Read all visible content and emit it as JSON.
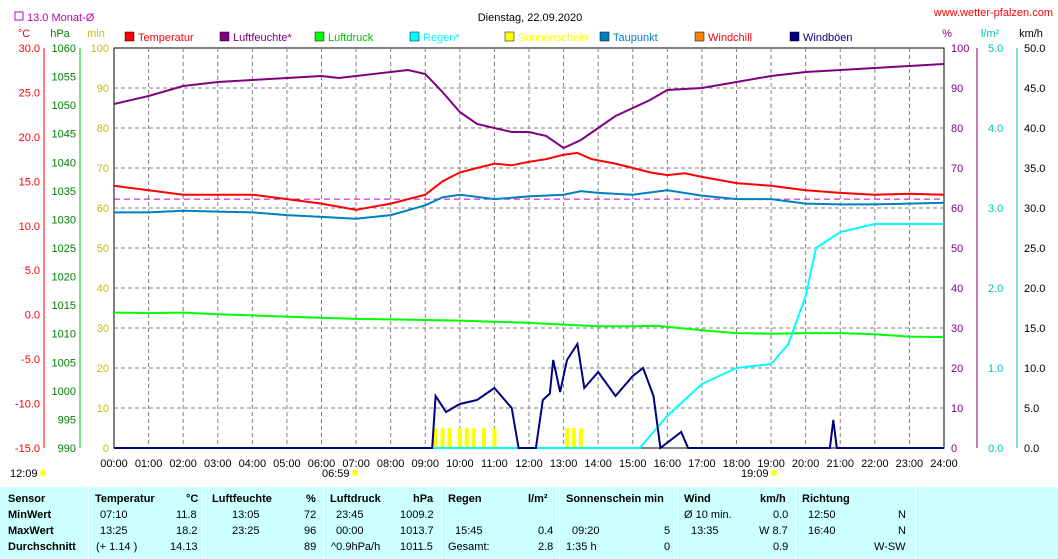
{
  "header": {
    "title": "Dienstag, 22.09.2020",
    "site": "www.wetter-pfalzen.com",
    "month_avg": "13.0 Monat-Ø"
  },
  "colors": {
    "temperatur": "#ff0000",
    "luftfeuchte": "#800080",
    "luftdruck": "#00ff00",
    "regen": "#00ffff",
    "sonnenschein": "#ffff00",
    "taupunkt": "#0080c0",
    "windchill": "#ff8000",
    "windboeen": "#000080",
    "grid": "#808080",
    "table_bg": "#ccffff"
  },
  "axes": {
    "left_units": [
      "°C",
      "hPa",
      "min"
    ],
    "right_units": [
      "%",
      "l/m²",
      "km/h"
    ],
    "temp_ticks": [
      "30.0",
      "25.0",
      "20.0",
      "15.0",
      "10.0",
      "5.0",
      "0.0",
      "-5.0",
      "-10.0",
      "-15.0"
    ],
    "hpa_ticks": [
      "1060",
      "1055",
      "1050",
      "1045",
      "1040",
      "1035",
      "1030",
      "1025",
      "1020",
      "1015",
      "1010",
      "1005",
      "1000",
      "995",
      "990"
    ],
    "min_ticks": [
      "100",
      "90",
      "80",
      "70",
      "60",
      "50",
      "40",
      "30",
      "20",
      "10",
      "0"
    ],
    "pct_ticks": [
      "100",
      "90",
      "80",
      "70",
      "60",
      "50",
      "40",
      "30",
      "20",
      "10",
      "0"
    ],
    "rain_ticks": [
      "5.0",
      "4.0",
      "3.0",
      "2.0",
      "1.0",
      "0.0"
    ],
    "wind_ticks": [
      "50.0",
      "45.0",
      "40.0",
      "35.0",
      "30.0",
      "25.0",
      "20.0",
      "15.0",
      "10.0",
      "5.0",
      "0.0"
    ],
    "hour_labels": [
      "00:00",
      "01:00",
      "02:00",
      "03:00",
      "04:00",
      "05:00",
      "06:00",
      "07:00",
      "08:00",
      "09:00",
      "10:00",
      "11:00",
      "12:00",
      "13:00",
      "14:00",
      "15:00",
      "16:00",
      "17:00",
      "18:00",
      "19:00",
      "20:00",
      "21:00",
      "22:00",
      "23:00",
      "24:00"
    ],
    "markers": {
      "moonrise": "12:09",
      "sunrise": "06:59",
      "sunset": "19:09"
    }
  },
  "legend": [
    "Temperatur",
    "Luftfeuchte*",
    "Luftdruck",
    "Regen*",
    "Sonnenschein",
    "Taupunkt",
    "Windchill",
    "Windböen"
  ],
  "chart_data": {
    "type": "line",
    "title": "Dienstag, 22.09.2020",
    "x_unit": "hour",
    "xlim": [
      0,
      24
    ],
    "series": [
      {
        "name": "Luftfeuchte*",
        "axis": "%",
        "ylim": [
          0,
          100
        ],
        "points": [
          [
            0,
            86
          ],
          [
            1,
            88
          ],
          [
            2,
            90.5
          ],
          [
            3,
            91.5
          ],
          [
            4,
            92
          ],
          [
            5,
            92.5
          ],
          [
            6,
            93
          ],
          [
            6.5,
            92.5
          ],
          [
            7,
            93
          ],
          [
            8,
            94
          ],
          [
            8.5,
            94.5
          ],
          [
            9,
            93.5
          ],
          [
            9.5,
            89
          ],
          [
            10,
            84
          ],
          [
            10.5,
            81
          ],
          [
            11,
            80
          ],
          [
            11.5,
            79
          ],
          [
            12,
            79
          ],
          [
            12.5,
            78
          ],
          [
            13,
            75
          ],
          [
            13.5,
            77
          ],
          [
            14,
            80
          ],
          [
            14.5,
            83
          ],
          [
            15,
            85
          ],
          [
            15.5,
            87
          ],
          [
            16,
            89.5
          ],
          [
            17,
            90
          ],
          [
            18,
            91.5
          ],
          [
            19,
            93
          ],
          [
            20,
            94
          ],
          [
            21,
            94.5
          ],
          [
            22,
            95
          ],
          [
            23,
            95.5
          ],
          [
            24,
            96
          ]
        ]
      },
      {
        "name": "Temperatur",
        "axis": "°C",
        "ylim": [
          -15,
          30
        ],
        "points": [
          [
            0,
            14.5
          ],
          [
            1,
            14
          ],
          [
            2,
            13.5
          ],
          [
            3,
            13.5
          ],
          [
            4,
            13.5
          ],
          [
            5,
            13
          ],
          [
            6,
            12.5
          ],
          [
            7,
            11.8
          ],
          [
            8,
            12.5
          ],
          [
            9,
            13.5
          ],
          [
            9.5,
            15
          ],
          [
            10,
            16
          ],
          [
            10.5,
            16.5
          ],
          [
            11,
            17
          ],
          [
            11.5,
            16.8
          ],
          [
            12,
            17.2
          ],
          [
            12.5,
            17.5
          ],
          [
            13,
            18
          ],
          [
            13.4,
            18.2
          ],
          [
            13.8,
            17.5
          ],
          [
            14.5,
            17
          ],
          [
            15,
            16.5
          ],
          [
            15.5,
            16
          ],
          [
            16,
            15.7
          ],
          [
            16.5,
            15.9
          ],
          [
            17,
            15.5
          ],
          [
            18,
            14.8
          ],
          [
            19,
            14.5
          ],
          [
            20,
            14
          ],
          [
            21,
            13.7
          ],
          [
            22,
            13.5
          ],
          [
            23,
            13.6
          ],
          [
            24,
            13.5
          ]
        ]
      },
      {
        "name": "Taupunkt",
        "axis": "°C",
        "ylim": [
          -15,
          30
        ],
        "points": [
          [
            0,
            11.5
          ],
          [
            1,
            11.5
          ],
          [
            2,
            11.7
          ],
          [
            3,
            11.6
          ],
          [
            4,
            11.5
          ],
          [
            5,
            11.2
          ],
          [
            6,
            11
          ],
          [
            7,
            10.8
          ],
          [
            8,
            11.2
          ],
          [
            9,
            12.3
          ],
          [
            9.5,
            13.2
          ],
          [
            10,
            13.5
          ],
          [
            11,
            13
          ],
          [
            12,
            13.3
          ],
          [
            13,
            13.5
          ],
          [
            13.5,
            13.9
          ],
          [
            14,
            13.7
          ],
          [
            15,
            13.5
          ],
          [
            16,
            14
          ],
          [
            17,
            13.4
          ],
          [
            18,
            13
          ],
          [
            19,
            13
          ],
          [
            20,
            12.5
          ],
          [
            21,
            12.4
          ],
          [
            22,
            12.4
          ],
          [
            23,
            12.5
          ],
          [
            24,
            12.6
          ]
        ]
      },
      {
        "name": "Luftdruck",
        "axis": "hPa",
        "ylim": [
          990,
          1060
        ],
        "points": [
          [
            0,
            1013.7
          ],
          [
            1,
            1013.6
          ],
          [
            2,
            1013.7
          ],
          [
            3,
            1013.4
          ],
          [
            4,
            1013.2
          ],
          [
            5,
            1013
          ],
          [
            6,
            1012.8
          ],
          [
            7,
            1012.6
          ],
          [
            8,
            1012.5
          ],
          [
            9,
            1012.4
          ],
          [
            10,
            1012.3
          ],
          [
            11,
            1012.1
          ],
          [
            12,
            1011.9
          ],
          [
            13,
            1011.6
          ],
          [
            14,
            1011.3
          ],
          [
            15,
            1011.3
          ],
          [
            15.7,
            1011.4
          ],
          [
            16,
            1011.2
          ],
          [
            17,
            1010.6
          ],
          [
            18,
            1010.1
          ],
          [
            19,
            1010.0
          ],
          [
            20,
            1010.1
          ],
          [
            21,
            1010.1
          ],
          [
            22,
            1009.9
          ],
          [
            23,
            1009.5
          ],
          [
            24,
            1009.4
          ]
        ]
      },
      {
        "name": "Regen*",
        "axis": "l/m²",
        "ylim": [
          0,
          5
        ],
        "points": [
          [
            0,
            0
          ],
          [
            15.2,
            0
          ],
          [
            15.6,
            0.2
          ],
          [
            16,
            0.4
          ],
          [
            17,
            0.8
          ],
          [
            17.5,
            0.9
          ],
          [
            18,
            1.0
          ],
          [
            19,
            1.05
          ],
          [
            19.5,
            1.3
          ],
          [
            20,
            1.9
          ],
          [
            20.3,
            2.5
          ],
          [
            21,
            2.7
          ],
          [
            21.5,
            2.75
          ],
          [
            22,
            2.8
          ],
          [
            24,
            2.8
          ]
        ]
      },
      {
        "name": "Windböen",
        "axis": "km/h",
        "ylim": [
          0,
          50
        ],
        "points": [
          [
            0,
            0
          ],
          [
            9.2,
            0
          ],
          [
            9.3,
            6.5
          ],
          [
            9.6,
            4.5
          ],
          [
            10,
            5.5
          ],
          [
            10.5,
            6
          ],
          [
            11,
            7.5
          ],
          [
            11.5,
            5
          ],
          [
            11.7,
            0
          ],
          [
            12.2,
            0
          ],
          [
            12.4,
            6
          ],
          [
            12.6,
            6.8
          ],
          [
            12.7,
            11
          ],
          [
            12.9,
            7
          ],
          [
            13.1,
            11
          ],
          [
            13.4,
            13
          ],
          [
            13.6,
            7.5
          ],
          [
            14,
            9.5
          ],
          [
            14.5,
            6.5
          ],
          [
            15,
            9
          ],
          [
            15.3,
            10
          ],
          [
            15.6,
            6.5
          ],
          [
            15.8,
            0
          ],
          [
            16.4,
            2
          ],
          [
            16.6,
            0
          ],
          [
            20.7,
            0
          ],
          [
            20.8,
            3.5
          ],
          [
            20.9,
            0
          ],
          [
            24,
            0
          ]
        ]
      },
      {
        "name": "Sonnenschein",
        "axis": "min",
        "ylim": [
          0,
          100
        ],
        "bars": [
          [
            9.3,
            5
          ],
          [
            9.5,
            5
          ],
          [
            9.7,
            5
          ],
          [
            10,
            5
          ],
          [
            10.2,
            5
          ],
          [
            10.4,
            5
          ],
          [
            10.7,
            5
          ],
          [
            11,
            5
          ],
          [
            13.1,
            5
          ],
          [
            13.3,
            5
          ],
          [
            13.5,
            5
          ]
        ]
      }
    ],
    "reference_lines": [
      {
        "label": "13.0 Monat-Ø",
        "axis": "°C",
        "value": 13.0
      }
    ]
  },
  "table": {
    "row_labels": [
      "Sensor",
      "MinWert",
      "MaxWert",
      "Durchschnitt"
    ],
    "temperatur": {
      "title": "Temperatur",
      "unit": "°C",
      "min_time": "07:10",
      "min": "11.8",
      "max_time": "13:25",
      "max": "18.2",
      "avg_note": "(+ 1.14 )",
      "avg": "14.13"
    },
    "feuchte": {
      "title": "Luftfeuchte",
      "unit": "%",
      "min_time": "13:05",
      "min": "72",
      "max_time": "23:25",
      "max": "96",
      "avg": "89"
    },
    "druck": {
      "title": "Luftdruck",
      "unit": "hPa",
      "min_time": "23:45",
      "min": "1009.2",
      "max_time": "00:00",
      "max": "1013.7",
      "avg_note": "^0.9hPa/h",
      "avg": "1011.5"
    },
    "regen": {
      "title": "Regen",
      "unit": "l/m²",
      "max_time": "15:45",
      "max": "0.4",
      "sum_label": "Gesamt:",
      "sum": "2.8"
    },
    "sonne": {
      "title": "Sonnenschein min",
      "max_time": "09:20",
      "max": "5",
      "sum_label": "1:35 h",
      "sum": "0"
    },
    "wind": {
      "title": "Wind",
      "unit": "km/h",
      "min_label": "Ø 10 min.",
      "min": "0.0",
      "max_time": "13:35",
      "max": "W 8.7",
      "avg": "0.9"
    },
    "richtung": {
      "title": "Richtung",
      "min_time": "12:50",
      "min": "N",
      "max_time": "16:40",
      "max": "N",
      "avg": "W-SW"
    }
  }
}
